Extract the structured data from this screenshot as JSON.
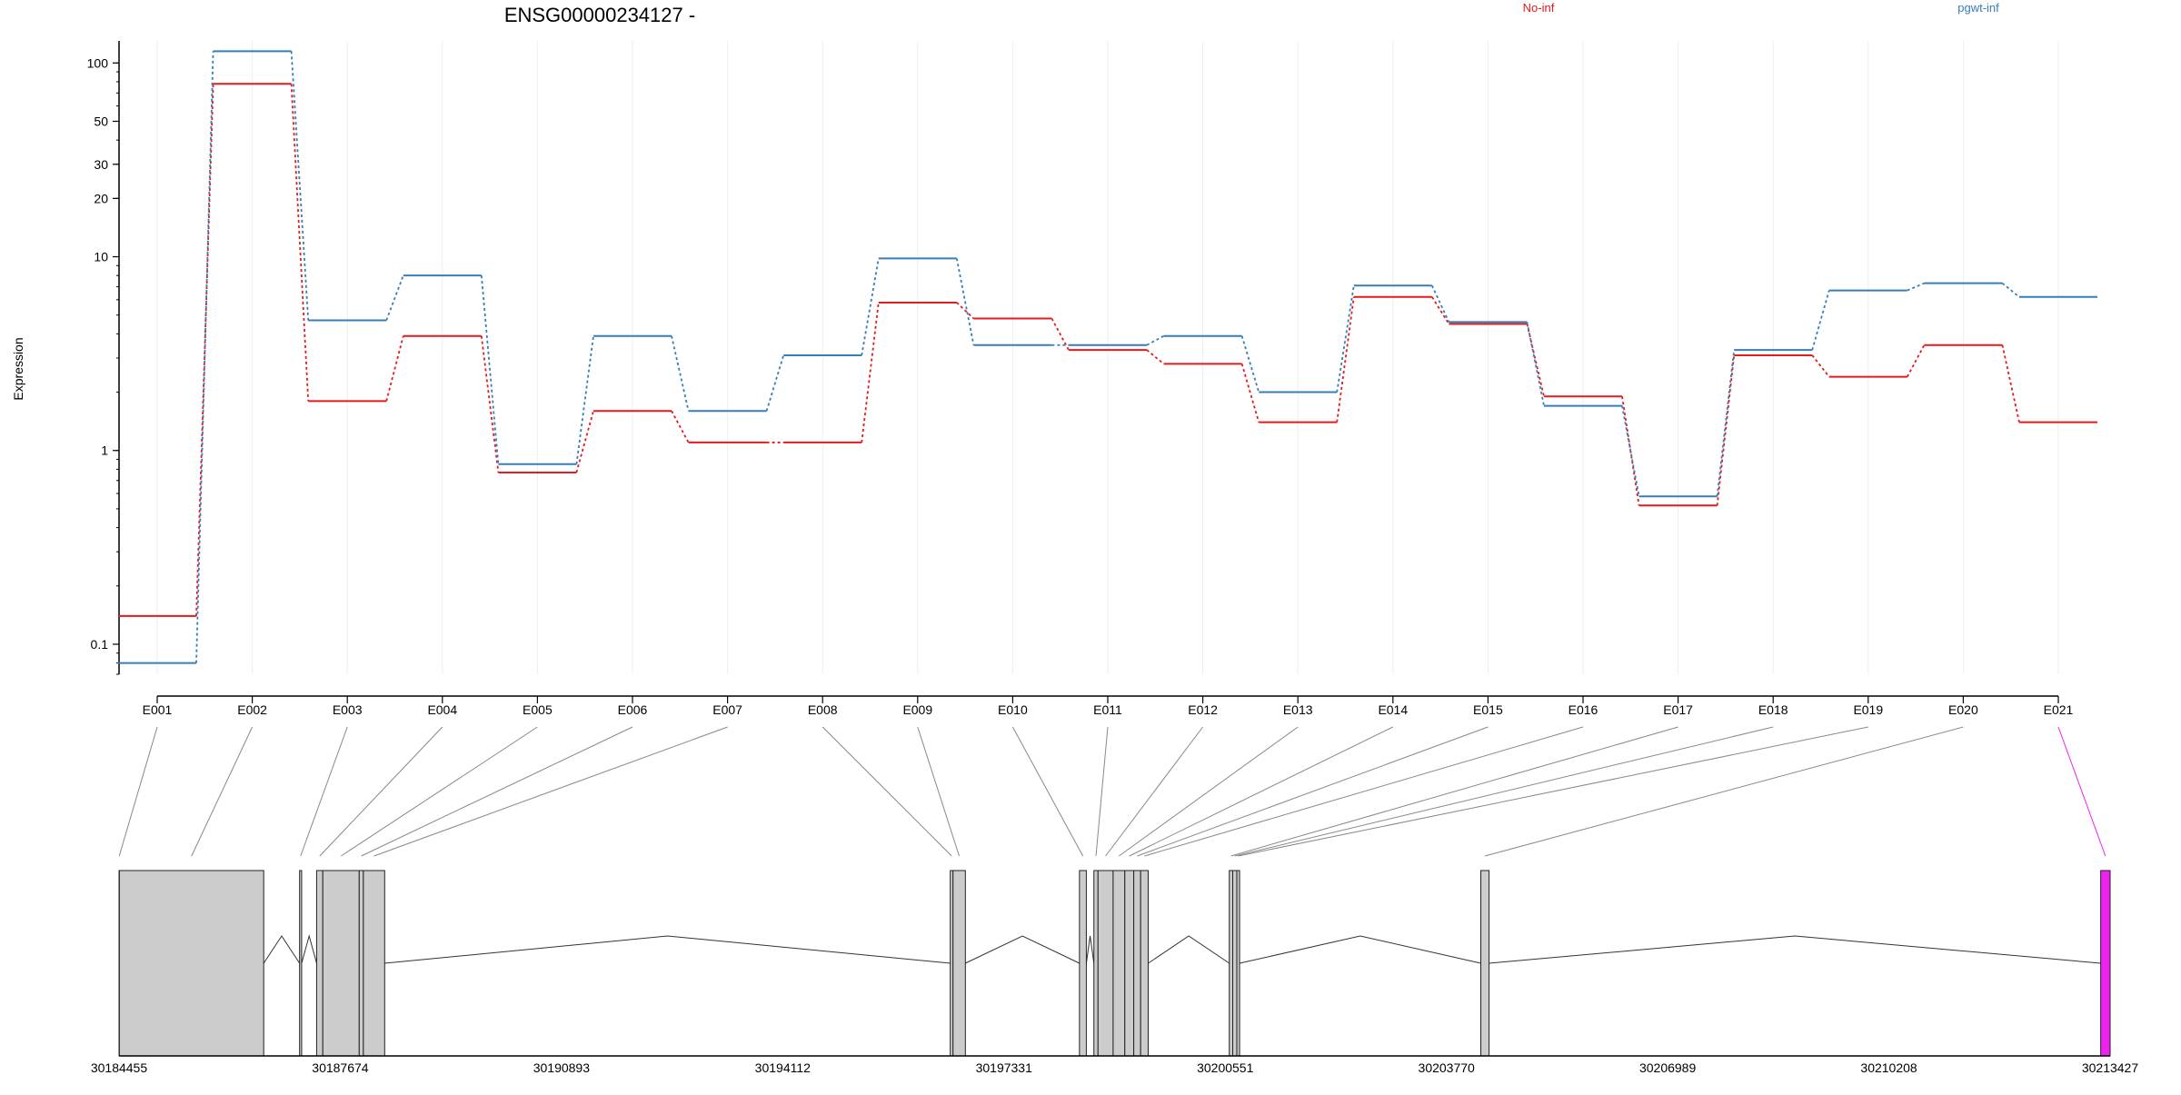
{
  "chart_data": {
    "type": "line",
    "title": "ENSG00000234127 -",
    "ylabel": "Expression",
    "xlabel": "",
    "y_scale": "log",
    "y_ticks": [
      0.1,
      1,
      10,
      20,
      30,
      50,
      100
    ],
    "ylim": [
      0.07,
      130
    ],
    "grid": "vertical lines at exon ticks",
    "legend_placement": "top",
    "categories": [
      "E001",
      "E002",
      "E003",
      "E004",
      "E005",
      "E006",
      "E007",
      "E008",
      "E009",
      "E010",
      "E011",
      "E012",
      "E013",
      "E014",
      "E015",
      "E016",
      "E017",
      "E018",
      "E019",
      "E020",
      "E021"
    ],
    "series": [
      {
        "name": "No-inf",
        "color": "#e41a1c",
        "values": [
          0.14,
          78,
          1.8,
          3.9,
          0.77,
          1.6,
          1.1,
          1.1,
          5.8,
          4.8,
          3.3,
          2.8,
          1.4,
          6.2,
          4.5,
          1.9,
          0.52,
          3.1,
          2.4,
          3.5,
          1.4
        ]
      },
      {
        "name": "pgwt-inf",
        "color": "#377eb8",
        "values": [
          0.08,
          115,
          4.7,
          8.0,
          0.85,
          3.9,
          1.6,
          3.1,
          9.8,
          3.5,
          3.5,
          3.9,
          2.0,
          7.1,
          4.6,
          1.7,
          0.58,
          3.3,
          6.7,
          7.3,
          6.2
        ]
      }
    ],
    "gene_model": {
      "coord_ticks": [
        "30184455",
        "30187674",
        "30190893",
        "30194112",
        "30197331",
        "30200551",
        "30203770",
        "30206989",
        "30210208",
        "30213427"
      ],
      "coord_range": [
        30184455,
        30213427
      ],
      "fill_color": "#cccccc",
      "highlight_color": "#ee22ee",
      "exons": [
        {
          "id": "E001",
          "start": 30184455,
          "end": 30184460
        },
        {
          "id": "E002",
          "start": 30184460,
          "end": 30186560
        },
        {
          "id": "E003",
          "start": 30187082,
          "end": 30187112
        },
        {
          "id": "E004",
          "start": 30187330,
          "end": 30187420
        },
        {
          "id": "E005",
          "start": 30187420,
          "end": 30187950
        },
        {
          "id": "E006",
          "start": 30187950,
          "end": 30188010
        },
        {
          "id": "E007",
          "start": 30188010,
          "end": 30188320
        },
        {
          "id": "E008",
          "start": 30196550,
          "end": 30196590
        },
        {
          "id": "E009",
          "start": 30196590,
          "end": 30196770
        },
        {
          "id": "E010",
          "start": 30198430,
          "end": 30198530
        },
        {
          "id": "E011",
          "start": 30198640,
          "end": 30198700
        },
        {
          "id": "E012",
          "start": 30198700,
          "end": 30198920
        },
        {
          "id": "E013",
          "start": 30198920,
          "end": 30199090
        },
        {
          "id": "E014",
          "start": 30199090,
          "end": 30199220
        },
        {
          "id": "E015",
          "start": 30199220,
          "end": 30199320
        },
        {
          "id": "E016",
          "start": 30199320,
          "end": 30199430
        },
        {
          "id": "E017",
          "start": 30200610,
          "end": 30200660
        },
        {
          "id": "E018",
          "start": 30200660,
          "end": 30200720
        },
        {
          "id": "E019",
          "start": 30200720,
          "end": 30200760
        },
        {
          "id": "E020",
          "start": 30204270,
          "end": 30204390
        },
        {
          "id": "E021",
          "start": 30213290,
          "end": 30213427
        }
      ],
      "introns": [
        {
          "start": 30186560,
          "end": 30187082
        },
        {
          "start": 30187112,
          "end": 30187330
        },
        {
          "start": 30188320,
          "end": 30196550
        },
        {
          "start": 30196770,
          "end": 30198430
        },
        {
          "start": 30198530,
          "end": 30198640
        },
        {
          "start": 30199430,
          "end": 30200610
        },
        {
          "start": 30200760,
          "end": 30204270
        },
        {
          "start": 30204390,
          "end": 30213290
        }
      ]
    }
  }
}
